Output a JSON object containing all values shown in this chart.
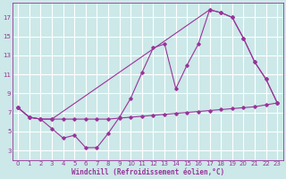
{
  "xlabel": "Windchill (Refroidissement éolien,°C)",
  "bg_color": "#cce8e8",
  "grid_color": "#ffffff",
  "line_color": "#993399",
  "xlim": [
    -0.5,
    23.5
  ],
  "ylim": [
    2,
    18.5
  ],
  "xticks": [
    0,
    1,
    2,
    3,
    4,
    5,
    6,
    7,
    8,
    9,
    10,
    11,
    12,
    13,
    14,
    15,
    16,
    17,
    18,
    19,
    20,
    21,
    22,
    23
  ],
  "yticks": [
    3,
    5,
    7,
    9,
    11,
    13,
    15,
    17
  ],
  "line1_x": [
    0,
    1,
    2,
    3,
    4,
    5,
    6,
    7,
    8,
    9,
    10,
    11,
    12,
    13,
    14,
    15,
    16,
    17,
    18,
    19,
    20,
    21,
    22,
    23
  ],
  "line1_y": [
    7.5,
    6.5,
    6.3,
    6.3,
    6.3,
    6.3,
    6.3,
    6.3,
    6.3,
    6.4,
    6.5,
    6.6,
    6.7,
    6.8,
    6.9,
    7.0,
    7.1,
    7.2,
    7.3,
    7.4,
    7.5,
    7.6,
    7.8,
    8.0
  ],
  "line2_x": [
    0,
    1,
    2,
    3,
    4,
    5,
    6,
    7,
    8,
    9,
    10,
    11,
    12,
    13,
    14,
    15,
    16,
    17,
    18,
    19,
    20,
    21,
    22,
    23
  ],
  "line2_y": [
    7.5,
    6.5,
    6.3,
    5.3,
    4.3,
    4.6,
    3.3,
    3.3,
    4.8,
    6.5,
    8.5,
    11.2,
    13.8,
    14.2,
    9.5,
    12.0,
    14.2,
    17.8,
    17.5,
    17.0,
    14.8,
    12.3,
    10.5,
    8.0
  ],
  "line3_x": [
    0,
    1,
    2,
    3,
    17,
    18,
    19,
    20,
    21,
    22,
    23
  ],
  "line3_y": [
    7.5,
    6.5,
    6.3,
    6.3,
    17.8,
    17.5,
    17.0,
    14.8,
    12.3,
    10.5,
    8.0
  ]
}
